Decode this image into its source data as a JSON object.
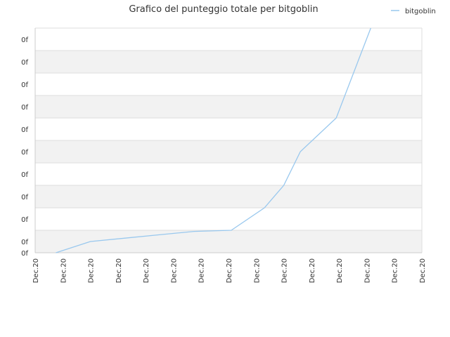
{
  "chart_data": {
    "type": "line",
    "title": "Grafico del punteggio totale per bitgoblin",
    "xlabel": "",
    "ylabel": "",
    "legend": {
      "position": "top-right"
    },
    "x_tick_labels": [
      "Dec.20",
      "Dec.20",
      "Dec.20",
      "Dec.20",
      "Dec.20",
      "Dec.20",
      "Dec.20",
      "Dec.20",
      "Dec.20",
      "Dec.20",
      "Dec.20",
      "Dec.20",
      "Dec.20",
      "Dec.20",
      "Dec.20"
    ],
    "y_tick_labels": [
      "0f",
      "0f",
      "0f",
      "0f",
      "0f",
      "0f",
      "0f",
      "0f",
      "0f",
      "0f",
      "0f"
    ],
    "xlim": [
      0,
      14
    ],
    "ylim": [
      0,
      10
    ],
    "grid": true,
    "colors": {
      "series": "#99c8ee",
      "band": "#f2f2f2",
      "grid": "#dddddd",
      "axis": "#cccccc"
    },
    "series": [
      {
        "name": "bitgoblin",
        "x": [
          0.75,
          2.0,
          3.25,
          4.5,
          5.75,
          7.1,
          8.3,
          9.0,
          9.6,
          10.9,
          12.15
        ],
        "y": [
          0.0,
          0.5,
          0.65,
          0.8,
          0.95,
          1.0,
          2.0,
          3.0,
          4.5,
          6.0,
          10.0
        ]
      }
    ]
  }
}
